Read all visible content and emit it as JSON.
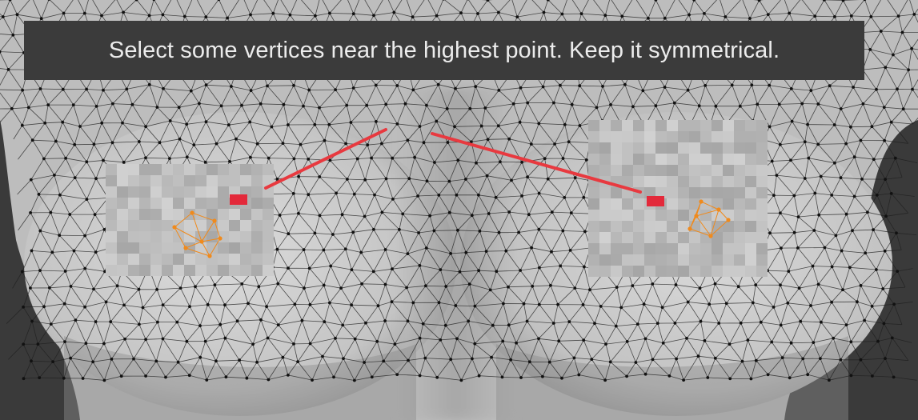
{
  "instruction": {
    "text": "Select some vertices near the highest point. Keep it symmetrical."
  },
  "colors": {
    "background": "#3a3a3a",
    "banner": "#3b3b3b",
    "banner_text": "#ececec",
    "mesh_skin": "#c9c9c9",
    "wire": "#1f1f1f",
    "vertex": "#111111",
    "selected_vertex": "#f08a1c",
    "pointer_line": "#e8393f",
    "highlight": "#e3293a"
  },
  "viewport": {
    "mode": "edit-mode-mesh",
    "annotation": "red pointer lines from central chest toward two blurred regions with orange selected vertices"
  }
}
